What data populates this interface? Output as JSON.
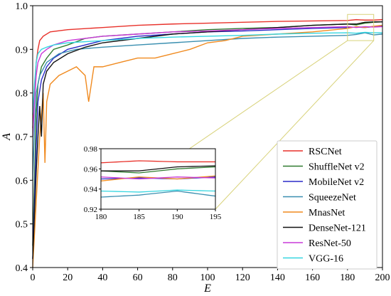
{
  "chart_data": {
    "type": "line",
    "xlabel": "E",
    "ylabel": "A",
    "xlim": [
      0,
      200
    ],
    "ylim": [
      0.4,
      1.0
    ],
    "xticks": [
      0,
      20,
      40,
      60,
      80,
      100,
      120,
      140,
      160,
      180,
      200
    ],
    "yticks": [
      0.4,
      0.5,
      0.6,
      0.7,
      0.8,
      0.9,
      1.0
    ],
    "xtick_labels": [
      "0",
      "20",
      "40",
      "60",
      "80",
      "100",
      "120",
      "140",
      "160",
      "180",
      "200"
    ],
    "ytick_labels": [
      "0.4",
      "0.5",
      "0.6",
      "0.7",
      "0.8",
      "0.9",
      "1.0"
    ],
    "legend_position": "lower-right",
    "inset": {
      "xlim": [
        180,
        195
      ],
      "ylim": [
        0.92,
        0.98
      ],
      "xticks": [
        180,
        185,
        190,
        195
      ],
      "yticks": [
        0.92,
        0.94,
        0.96,
        0.98
      ],
      "xtick_labels": [
        "180",
        "185",
        "190",
        "195"
      ],
      "ytick_labels": [
        "0.92",
        "0.94",
        "0.96",
        "0.98"
      ],
      "zoom_box_color": "#d8d27a"
    },
    "series": [
      {
        "name": "RSCNet",
        "color": "#e8312a",
        "points": [
          [
            0,
            0.72
          ],
          [
            1,
            0.8
          ],
          [
            2,
            0.87
          ],
          [
            3,
            0.9
          ],
          [
            4,
            0.92
          ],
          [
            6,
            0.93
          ],
          [
            10,
            0.94
          ],
          [
            20,
            0.945
          ],
          [
            40,
            0.95
          ],
          [
            60,
            0.955
          ],
          [
            80,
            0.958
          ],
          [
            100,
            0.96
          ],
          [
            120,
            0.962
          ],
          [
            140,
            0.964
          ],
          [
            160,
            0.965
          ],
          [
            180,
            0.966
          ],
          [
            185,
            0.968
          ],
          [
            190,
            0.967
          ],
          [
            195,
            0.967
          ],
          [
            200,
            0.968
          ]
        ]
      },
      {
        "name": "ShuffleNet v2",
        "color": "#2f7a2f",
        "points": [
          [
            0,
            0.45
          ],
          [
            1,
            0.6
          ],
          [
            2,
            0.75
          ],
          [
            3,
            0.82
          ],
          [
            5,
            0.86
          ],
          [
            8,
            0.88
          ],
          [
            12,
            0.9
          ],
          [
            20,
            0.91
          ],
          [
            30,
            0.925
          ],
          [
            40,
            0.93
          ],
          [
            60,
            0.935
          ],
          [
            80,
            0.94
          ],
          [
            100,
            0.945
          ],
          [
            120,
            0.948
          ],
          [
            140,
            0.95
          ],
          [
            160,
            0.955
          ],
          [
            180,
            0.958
          ],
          [
            185,
            0.956
          ],
          [
            190,
            0.96
          ],
          [
            195,
            0.962
          ],
          [
            200,
            0.963
          ]
        ]
      },
      {
        "name": "MobileNet v2",
        "color": "#2a2ac8",
        "points": [
          [
            0,
            0.42
          ],
          [
            1,
            0.55
          ],
          [
            2,
            0.68
          ],
          [
            3,
            0.78
          ],
          [
            5,
            0.83
          ],
          [
            8,
            0.86
          ],
          [
            12,
            0.88
          ],
          [
            20,
            0.9
          ],
          [
            30,
            0.91
          ],
          [
            40,
            0.92
          ],
          [
            60,
            0.93
          ],
          [
            80,
            0.935
          ],
          [
            100,
            0.94
          ],
          [
            120,
            0.942
          ],
          [
            140,
            0.945
          ],
          [
            160,
            0.948
          ],
          [
            180,
            0.95
          ],
          [
            185,
            0.951
          ],
          [
            190,
            0.95
          ],
          [
            195,
            0.952
          ],
          [
            200,
            0.953
          ]
        ]
      },
      {
        "name": "SqueezeNet",
        "color": "#3a8fb0",
        "points": [
          [
            0,
            0.6
          ],
          [
            1,
            0.72
          ],
          [
            2,
            0.8
          ],
          [
            4,
            0.84
          ],
          [
            8,
            0.87
          ],
          [
            15,
            0.89
          ],
          [
            25,
            0.9
          ],
          [
            40,
            0.905
          ],
          [
            60,
            0.91
          ],
          [
            80,
            0.915
          ],
          [
            100,
            0.92
          ],
          [
            120,
            0.925
          ],
          [
            140,
            0.928
          ],
          [
            160,
            0.93
          ],
          [
            180,
            0.932
          ],
          [
            185,
            0.934
          ],
          [
            190,
            0.938
          ],
          [
            195,
            0.933
          ],
          [
            200,
            0.935
          ]
        ]
      },
      {
        "name": "MnasNet",
        "color": "#f08a1f",
        "points": [
          [
            0,
            0.4
          ],
          [
            2,
            0.55
          ],
          [
            4,
            0.7
          ],
          [
            6,
            0.8
          ],
          [
            7,
            0.64
          ],
          [
            8,
            0.78
          ],
          [
            10,
            0.82
          ],
          [
            15,
            0.84
          ],
          [
            20,
            0.85
          ],
          [
            25,
            0.86
          ],
          [
            30,
            0.84
          ],
          [
            32,
            0.78
          ],
          [
            35,
            0.86
          ],
          [
            40,
            0.86
          ],
          [
            50,
            0.87
          ],
          [
            60,
            0.88
          ],
          [
            70,
            0.88
          ],
          [
            80,
            0.89
          ],
          [
            90,
            0.9
          ],
          [
            100,
            0.915
          ],
          [
            110,
            0.92
          ],
          [
            120,
            0.93
          ],
          [
            140,
            0.935
          ],
          [
            160,
            0.94
          ],
          [
            180,
            0.948
          ],
          [
            185,
            0.952
          ],
          [
            190,
            0.95
          ],
          [
            195,
            0.953
          ],
          [
            200,
            0.955
          ]
        ]
      },
      {
        "name": "DenseNet-121",
        "color": "#111111",
        "points": [
          [
            0,
            0.42
          ],
          [
            1,
            0.52
          ],
          [
            2,
            0.62
          ],
          [
            3,
            0.7
          ],
          [
            4,
            0.77
          ],
          [
            5,
            0.7
          ],
          [
            6,
            0.82
          ],
          [
            8,
            0.85
          ],
          [
            12,
            0.87
          ],
          [
            20,
            0.89
          ],
          [
            30,
            0.905
          ],
          [
            40,
            0.915
          ],
          [
            60,
            0.925
          ],
          [
            80,
            0.935
          ],
          [
            100,
            0.94
          ],
          [
            120,
            0.945
          ],
          [
            140,
            0.95
          ],
          [
            160,
            0.955
          ],
          [
            180,
            0.958
          ],
          [
            185,
            0.958
          ],
          [
            190,
            0.962
          ],
          [
            195,
            0.963
          ],
          [
            200,
            0.963
          ]
        ]
      },
      {
        "name": "ResNet-50",
        "color": "#c93ad8",
        "points": [
          [
            0,
            0.7
          ],
          [
            1,
            0.78
          ],
          [
            2,
            0.84
          ],
          [
            3,
            0.87
          ],
          [
            5,
            0.89
          ],
          [
            8,
            0.9
          ],
          [
            12,
            0.91
          ],
          [
            20,
            0.92
          ],
          [
            40,
            0.93
          ],
          [
            60,
            0.935
          ],
          [
            80,
            0.94
          ],
          [
            100,
            0.942
          ],
          [
            120,
            0.945
          ],
          [
            140,
            0.948
          ],
          [
            160,
            0.95
          ],
          [
            180,
            0.952
          ],
          [
            185,
            0.95
          ],
          [
            190,
            0.952
          ],
          [
            195,
            0.951
          ],
          [
            200,
            0.952
          ]
        ]
      },
      {
        "name": "VGG-16",
        "color": "#35d6e0",
        "points": [
          [
            0,
            0.75
          ],
          [
            1,
            0.82
          ],
          [
            2,
            0.87
          ],
          [
            3,
            0.89
          ],
          [
            5,
            0.9
          ],
          [
            8,
            0.905
          ],
          [
            12,
            0.91
          ],
          [
            20,
            0.915
          ],
          [
            40,
            0.92
          ],
          [
            60,
            0.925
          ],
          [
            80,
            0.928
          ],
          [
            100,
            0.93
          ],
          [
            120,
            0.932
          ],
          [
            140,
            0.935
          ],
          [
            160,
            0.937
          ],
          [
            180,
            0.938
          ],
          [
            185,
            0.937
          ],
          [
            190,
            0.939
          ],
          [
            195,
            0.938
          ],
          [
            200,
            0.938
          ]
        ]
      }
    ]
  }
}
